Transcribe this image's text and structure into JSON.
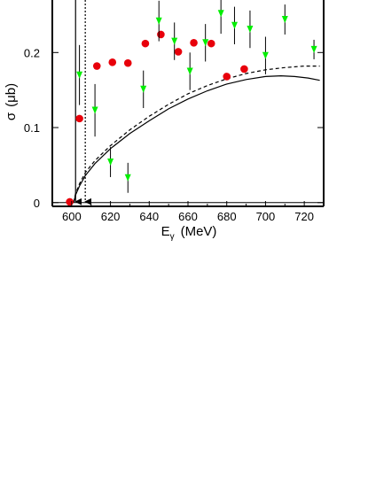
{
  "chart_data": {
    "type": "scatter",
    "title": "",
    "xlabel": {
      "main": "E",
      "sub": "γ",
      "unit": "(MeV)"
    },
    "ylabel": {
      "main": "σ",
      "unit": "(μb)"
    },
    "xlim": [
      590,
      730
    ],
    "ylim": [
      -0.005,
      0.27
    ],
    "xticks": [
      {
        "value": 600,
        "label": "600"
      },
      {
        "value": 620,
        "label": "620"
      },
      {
        "value": 640,
        "label": "640"
      },
      {
        "value": 660,
        "label": "660"
      },
      {
        "value": 680,
        "label": "680"
      },
      {
        "value": 700,
        "label": "700"
      },
      {
        "value": 720,
        "label": "720"
      }
    ],
    "yticks": [
      {
        "value": 0,
        "label": "0"
      },
      {
        "value": 0.1,
        "label": "0.1"
      },
      {
        "value": 0.2,
        "label": "0.2"
      }
    ],
    "grid": false,
    "legend": "none",
    "series": [
      {
        "marker": "circle",
        "color": "#e8000b",
        "points": [
          {
            "x": 599,
            "y": 0.001,
            "yerr": 0
          },
          {
            "x": 604,
            "y": 0.112,
            "yerr": 0
          },
          {
            "x": 613,
            "y": 0.182,
            "yerr": 0
          },
          {
            "x": 621,
            "y": 0.187,
            "yerr": 0
          },
          {
            "x": 629,
            "y": 0.186,
            "yerr": 0
          },
          {
            "x": 638,
            "y": 0.212,
            "yerr": 0
          },
          {
            "x": 646,
            "y": 0.224,
            "yerr": 0
          },
          {
            "x": 655,
            "y": 0.201,
            "yerr": 0
          },
          {
            "x": 663,
            "y": 0.213,
            "yerr": 0
          },
          {
            "x": 672,
            "y": 0.212,
            "yerr": 0
          },
          {
            "x": 680,
            "y": 0.168,
            "yerr": 0
          },
          {
            "x": 689,
            "y": 0.178,
            "yerr": 0
          }
        ]
      },
      {
        "marker": "triangle-down",
        "color": "#00ee00",
        "points": [
          {
            "x": 604,
            "y": 0.17,
            "yerr": 0.04
          },
          {
            "x": 612,
            "y": 0.123,
            "yerr": 0.035
          },
          {
            "x": 620,
            "y": 0.054,
            "yerr": 0.02
          },
          {
            "x": 629,
            "y": 0.033,
            "yerr": 0.02
          },
          {
            "x": 637,
            "y": 0.151,
            "yerr": 0.025
          },
          {
            "x": 645,
            "y": 0.242,
            "yerr": 0.027
          },
          {
            "x": 653,
            "y": 0.215,
            "yerr": 0.025
          },
          {
            "x": 661,
            "y": 0.175,
            "yerr": 0.025
          },
          {
            "x": 669,
            "y": 0.213,
            "yerr": 0.025
          },
          {
            "x": 677,
            "y": 0.252,
            "yerr": 0.027
          },
          {
            "x": 684,
            "y": 0.236,
            "yerr": 0.025
          },
          {
            "x": 692,
            "y": 0.231,
            "yerr": 0.025
          },
          {
            "x": 700,
            "y": 0.196,
            "yerr": 0.025
          },
          {
            "x": 710,
            "y": 0.244,
            "yerr": 0.02
          },
          {
            "x": 725,
            "y": 0.204,
            "yerr": 0.013
          }
        ]
      }
    ],
    "curves": [
      {
        "style": "solid",
        "color": "#000000",
        "x": [
          601,
          602,
          604,
          607,
          612,
          620,
          630,
          640,
          650,
          660,
          670,
          680,
          690,
          700,
          708,
          715,
          722,
          728
        ],
        "y": [
          0.0,
          0.01,
          0.022,
          0.036,
          0.052,
          0.072,
          0.092,
          0.109,
          0.125,
          0.138,
          0.149,
          0.158,
          0.164,
          0.168,
          0.169,
          0.168,
          0.166,
          0.163
        ]
      },
      {
        "style": "dashed",
        "color": "#000000",
        "x": [
          601,
          602,
          604,
          607,
          612,
          620,
          630,
          640,
          650,
          660,
          670,
          680,
          690,
          700,
          710,
          720,
          728
        ],
        "y": [
          0.0,
          0.012,
          0.025,
          0.04,
          0.056,
          0.076,
          0.097,
          0.115,
          0.131,
          0.145,
          0.156,
          0.165,
          0.172,
          0.177,
          0.18,
          0.182,
          0.182
        ]
      }
    ],
    "threshold_lines": [
      {
        "x": 602,
        "style": "solid",
        "arrow": true
      },
      {
        "x": 607,
        "style": "dotted",
        "arrow": true
      }
    ]
  }
}
